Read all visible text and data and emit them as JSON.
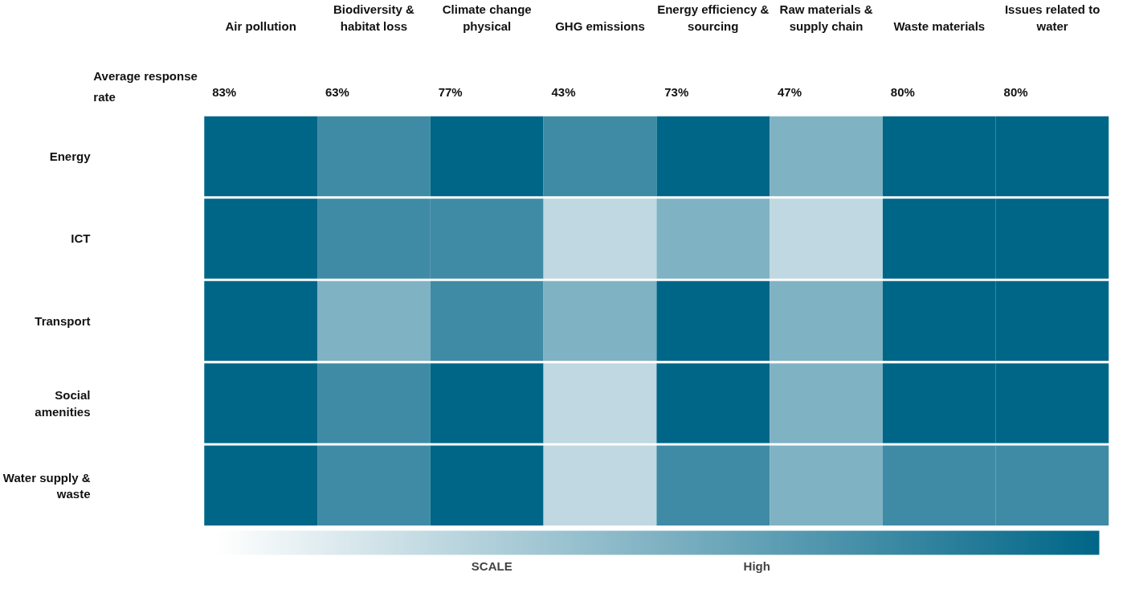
{
  "chart_data": {
    "type": "heatmap",
    "categories": [
      "Air pollution",
      "Biodiversity & habitat loss",
      "Climate change physical",
      "GHG emissions",
      "Energy efficiency & sourcing",
      "Raw materials & supply chain",
      "Waste materials",
      "Issues related to water"
    ],
    "y_categories": [
      "Energy",
      "ICT",
      "Transport",
      "Social amenities",
      "Water supply & waste"
    ],
    "cells": [
      [
        4,
        3,
        4,
        3,
        4,
        2,
        4,
        4
      ],
      [
        4,
        3,
        3,
        1,
        2,
        1,
        4,
        4
      ],
      [
        4,
        2,
        3,
        2,
        4,
        2,
        4,
        4
      ],
      [
        4,
        3,
        4,
        1,
        4,
        2,
        4,
        4
      ],
      [
        4,
        3,
        4,
        1,
        3,
        2,
        3,
        3
      ]
    ],
    "clim": [
      0,
      4
    ],
    "cticks": [
      {
        "value": 1.25,
        "label": "SCALE"
      },
      {
        "value": 2.45,
        "label": "High"
      }
    ],
    "annotations": [
      "Average response rate",
      "83%",
      "63%",
      "77%",
      "43%",
      "73%",
      "47%",
      "80%",
      "80%"
    ]
  }
}
